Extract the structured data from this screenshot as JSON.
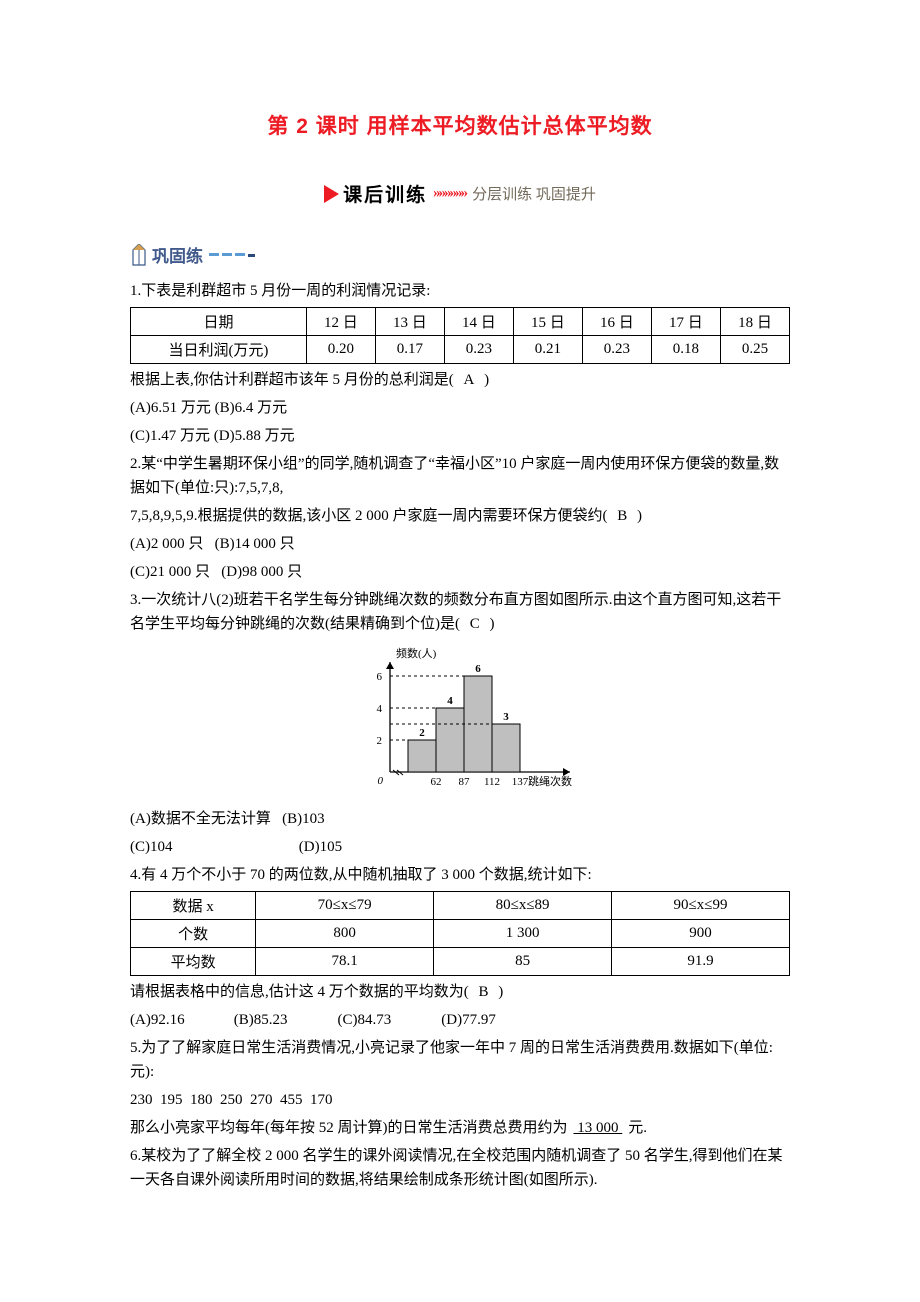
{
  "title": "第 2 课时  用样本平均数估计总体平均数",
  "banner": {
    "main": "课后训练",
    "chevrons": "»»»»»»",
    "sub": "分层训练 巩固提升"
  },
  "section1": {
    "label": "巩固练"
  },
  "q1": {
    "stem": "1.下表是利群超市 5 月份一周的利润情况记录:",
    "table": {
      "headers": [
        "日期",
        "12 日",
        "13 日",
        "14 日",
        "15 日",
        "16 日",
        "17 日",
        "18 日"
      ],
      "row_label": "当日利润(万元)",
      "values": [
        "0.20",
        "0.17",
        "0.23",
        "0.21",
        "0.23",
        "0.18",
        "0.25"
      ]
    },
    "tail": "根据上表,你估计利群超市该年 5 月份的总利润是(",
    "answer": "A",
    "tail2": ")",
    "opts": [
      "(A)6.51 万元",
      "(B)6.4 万元",
      "(C)1.47 万元",
      "(D)5.88 万元"
    ]
  },
  "q2": {
    "line1": "2.某“中学生暑期环保小组”的同学,随机调查了“幸福小区”10 户家庭一周内使用环保方便袋的数量,数据如下(单位:只):7,5,7,8,",
    "line2_a": "7,5,8,9,5,9.根据提供的数据,该小区 2 000 户家庭一周内需要环保方便袋约(",
    "answer": "B",
    "line2_b": ")",
    "opts": [
      "(A)2 000 只",
      "(B)14 000 只",
      "(C)21 000 只",
      "(D)98 000 只"
    ]
  },
  "q3": {
    "line1": "3.一次统计八(2)班若干名学生每分钟跳绳次数的频数分布直方图如图所示.由这个直方图可知,这若干名学生平均每分钟跳绳的次数(结果精确到个位)是(",
    "answer": "C",
    "line1_b": ")",
    "chart": {
      "y_label": "频数(人)",
      "x_label": "跳绳次数",
      "bars": [
        {
          "x0": 37,
          "x1": 62,
          "h": 2,
          "label": "2",
          "color": "#bfbfbf"
        },
        {
          "x0": 62,
          "x1": 87,
          "h": 4,
          "label": "4",
          "color": "#bfbfbf"
        },
        {
          "x0": 87,
          "x1": 112,
          "h": 6,
          "label": "6",
          "color": "#bfbfbf"
        },
        {
          "x0": 112,
          "x1": 137,
          "h": 3,
          "label": "3",
          "color": "#bfbfbf"
        }
      ],
      "y_ticks": [
        2,
        4,
        6
      ],
      "x_ticks": [
        "62",
        "87",
        "112",
        "137"
      ],
      "axis_color": "#000000",
      "dash_color": "#000000",
      "label_fontsize": 11
    },
    "opts_row1": [
      "(A)数据不全无法计算",
      "(B)103"
    ],
    "opts_row2": [
      "(C)104",
      "(D)105"
    ]
  },
  "q4": {
    "stem": "4.有 4 万个不小于 70 的两位数,从中随机抽取了 3 000 个数据,统计如下:",
    "table": {
      "headers": [
        "数据 x",
        "70≤x≤79",
        "80≤x≤89",
        "90≤x≤99"
      ],
      "rows": [
        [
          "个数",
          "800",
          "1 300",
          "900"
        ],
        [
          "平均数",
          "78.1",
          "85",
          "91.9"
        ]
      ]
    },
    "tail": "请根据表格中的信息,估计这 4 万个数据的平均数为(",
    "answer": "B",
    "tail2": ")",
    "opts": [
      "(A)92.16",
      "(B)85.23",
      "(C)84.73",
      "(D)77.97"
    ]
  },
  "q5": {
    "line1": "5.为了了解家庭日常生活消费情况,小亮记录了他家一年中 7 周的日常生活消费费用.数据如下(单位:元):",
    "data": "230  195  180  250  270  455  170",
    "line2_a": "那么小亮家平均每年(每年按 52 周计算)的日常生活消费总费用约为",
    "blank": "  13 000  ",
    "line2_b": "元."
  },
  "q6": {
    "text": "6.某校为了了解全校 2 000 名学生的课外阅读情况,在全校范围内随机调查了 50 名学生,得到他们在某一天各自课外阅读所用时间的数据,将结果绘制成条形统计图(如图所示)."
  }
}
